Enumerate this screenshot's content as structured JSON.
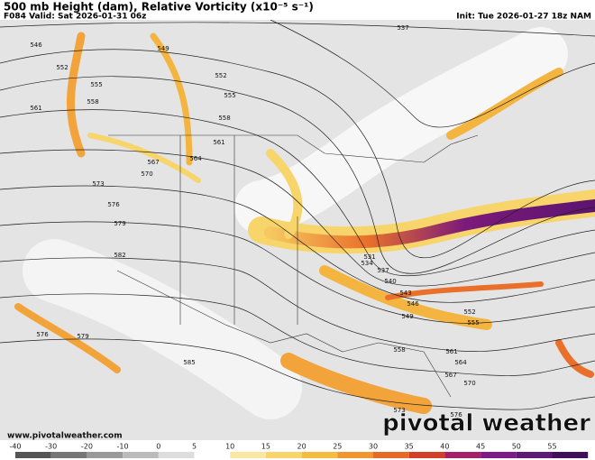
{
  "header": {
    "title": "500 mb Height (dam), Relative Vorticity (x10⁻⁵ s⁻¹)",
    "valid": "F084 Valid: Sat 2026-01-31 06z",
    "init": "Init: Tue 2026-01-27 18z NAM"
  },
  "map": {
    "contour_labels": [
      546,
      549,
      552,
      552,
      555,
      555,
      558,
      561,
      558,
      561,
      564,
      567,
      570,
      573,
      576,
      579,
      582,
      537,
      531,
      534,
      537,
      540,
      543,
      546,
      549,
      552,
      555,
      558,
      561,
      564,
      567,
      570,
      573,
      576,
      585,
      576,
      579
    ],
    "website": "www.pivotalweather.com",
    "brand": "pivotal weather"
  },
  "colorbar": {
    "ticks": [
      -40,
      -30,
      -20,
      -10,
      0,
      5,
      10,
      15,
      20,
      25,
      30,
      35,
      40,
      45,
      50,
      55
    ]
  }
}
